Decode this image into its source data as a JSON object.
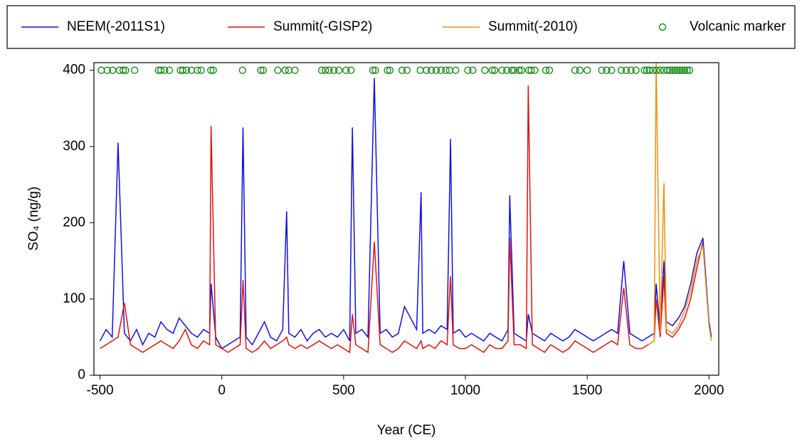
{
  "chart_data": {
    "type": "line",
    "x_label": "Year (CE)",
    "y_label": "SO₄ (ng/g)",
    "xlim": [
      -525,
      2040
    ],
    "ylim": [
      0,
      410
    ],
    "xticks": [
      -500,
      0,
      500,
      1000,
      1500,
      2000
    ],
    "yticks": [
      0,
      100,
      200,
      300,
      400
    ],
    "grid": false,
    "legend": "top",
    "x": [
      -500,
      -475,
      -450,
      -426,
      -400,
      -375,
      -350,
      -325,
      -300,
      -275,
      -250,
      -225,
      -200,
      -175,
      -150,
      -125,
      -100,
      -75,
      -50,
      -44,
      -25,
      0,
      25,
      50,
      75,
      87,
      100,
      125,
      150,
      175,
      200,
      225,
      250,
      266,
      275,
      300,
      325,
      350,
      375,
      400,
      425,
      450,
      475,
      500,
      525,
      536,
      550,
      575,
      600,
      626,
      650,
      675,
      700,
      725,
      750,
      775,
      800,
      818,
      825,
      850,
      875,
      900,
      925,
      939,
      950,
      975,
      1000,
      1025,
      1050,
      1075,
      1100,
      1125,
      1150,
      1175,
      1182,
      1200,
      1225,
      1250,
      1258,
      1275,
      1300,
      1325,
      1350,
      1375,
      1400,
      1425,
      1450,
      1475,
      1500,
      1525,
      1550,
      1575,
      1600,
      1625,
      1650,
      1675,
      1700,
      1725,
      1750,
      1775,
      1783,
      1800,
      1815,
      1825,
      1850,
      1875,
      1900,
      1925,
      1950,
      1975,
      2000,
      2010
    ],
    "series": [
      {
        "name": "NEEM(-2011S1)",
        "color": "#1010dd",
        "values": [
          45,
          60,
          50,
          305,
          55,
          45,
          60,
          40,
          55,
          50,
          70,
          60,
          55,
          75,
          65,
          55,
          50,
          60,
          55,
          120,
          50,
          35,
          40,
          45,
          50,
          325,
          50,
          40,
          55,
          70,
          50,
          45,
          60,
          215,
          55,
          50,
          60,
          45,
          55,
          60,
          50,
          55,
          50,
          60,
          45,
          325,
          55,
          60,
          50,
          390,
          55,
          60,
          50,
          55,
          90,
          75,
          60,
          240,
          55,
          60,
          55,
          65,
          60,
          310,
          55,
          60,
          50,
          55,
          50,
          45,
          55,
          50,
          45,
          60,
          236,
          55,
          50,
          45,
          80,
          55,
          50,
          45,
          55,
          50,
          45,
          50,
          60,
          55,
          50,
          45,
          50,
          55,
          60,
          55,
          150,
          55,
          50,
          45,
          50,
          55,
          120,
          60,
          150,
          70,
          65,
          75,
          90,
          120,
          160,
          180,
          70,
          50
        ]
      },
      {
        "name": "Summit(-GISP2)",
        "color": "#e01010",
        "values": [
          35,
          40,
          45,
          50,
          95,
          40,
          35,
          30,
          35,
          40,
          45,
          40,
          35,
          45,
          60,
          40,
          35,
          45,
          40,
          327,
          40,
          35,
          30,
          35,
          40,
          125,
          35,
          30,
          35,
          45,
          35,
          40,
          45,
          50,
          40,
          35,
          40,
          35,
          40,
          45,
          40,
          35,
          40,
          35,
          30,
          80,
          40,
          35,
          30,
          175,
          40,
          35,
          30,
          35,
          45,
          40,
          35,
          45,
          35,
          40,
          35,
          45,
          40,
          130,
          40,
          35,
          35,
          40,
          35,
          30,
          40,
          35,
          35,
          45,
          180,
          40,
          40,
          35,
          380,
          40,
          35,
          30,
          40,
          35,
          30,
          35,
          45,
          40,
          35,
          30,
          35,
          40,
          45,
          40,
          115,
          40,
          35,
          35,
          40,
          45,
          100,
          50,
          130,
          55,
          50,
          60,
          75,
          100,
          140,
          175,
          null,
          null
        ]
      },
      {
        "name": "Summit(-2010)",
        "color": "#f0900a",
        "values": [
          null,
          null,
          null,
          null,
          null,
          null,
          null,
          null,
          null,
          null,
          null,
          null,
          null,
          null,
          null,
          null,
          null,
          null,
          null,
          null,
          null,
          null,
          null,
          null,
          null,
          null,
          null,
          null,
          null,
          null,
          null,
          null,
          null,
          null,
          null,
          null,
          null,
          null,
          null,
          null,
          null,
          null,
          null,
          null,
          null,
          null,
          null,
          null,
          null,
          null,
          null,
          null,
          null,
          null,
          null,
          null,
          null,
          null,
          null,
          null,
          null,
          null,
          null,
          null,
          null,
          null,
          null,
          null,
          null,
          null,
          null,
          null,
          null,
          null,
          null,
          null,
          null,
          null,
          null,
          null,
          null,
          null,
          null,
          null,
          null,
          null,
          null,
          null,
          null,
          null,
          null,
          null,
          null,
          null,
          null,
          null,
          null,
          null,
          40,
          45,
          410,
          55,
          252,
          60,
          55,
          65,
          85,
          110,
          150,
          170,
          65,
          45
        ]
      },
      {
        "name": "Volcanic marker",
        "color": "#1a8a1a",
        "type": "scatter",
        "x": [
          -495,
          -470,
          -448,
          -420,
          -405,
          -395,
          -358,
          -260,
          -250,
          -235,
          -215,
          -170,
          -160,
          -145,
          -125,
          -100,
          -85,
          -45,
          -35,
          85,
          160,
          170,
          230,
          260,
          275,
          300,
          410,
          425,
          440,
          460,
          480,
          510,
          530,
          620,
          630,
          680,
          690,
          740,
          760,
          815,
          840,
          860,
          880,
          900,
          920,
          935,
          960,
          1010,
          1030,
          1080,
          1110,
          1120,
          1150,
          1170,
          1190,
          1200,
          1220,
          1230,
          1260,
          1270,
          1285,
          1330,
          1345,
          1450,
          1470,
          1500,
          1560,
          1580,
          1600,
          1640,
          1660,
          1680,
          1700,
          1735,
          1745,
          1755,
          1770,
          1785,
          1800,
          1815,
          1830,
          1840,
          1850,
          1860,
          1870,
          1880,
          1890,
          1900,
          1910,
          1920
        ],
        "values": [
          400,
          400,
          400,
          400,
          400,
          400,
          400,
          400,
          400,
          400,
          400,
          400,
          400,
          400,
          400,
          400,
          400,
          400,
          400,
          400,
          400,
          400,
          400,
          400,
          400,
          400,
          400,
          400,
          400,
          400,
          400,
          400,
          400,
          400,
          400,
          400,
          400,
          400,
          400,
          400,
          400,
          400,
          400,
          400,
          400,
          400,
          400,
          400,
          400,
          400,
          400,
          400,
          400,
          400,
          400,
          400,
          400,
          400,
          400,
          400,
          400,
          400,
          400,
          400,
          400,
          400,
          400,
          400,
          400,
          400,
          400,
          400,
          400,
          400,
          400,
          400,
          400,
          400,
          400,
          400,
          400,
          400,
          400,
          400,
          400,
          400,
          400,
          400,
          400,
          400
        ]
      }
    ]
  }
}
